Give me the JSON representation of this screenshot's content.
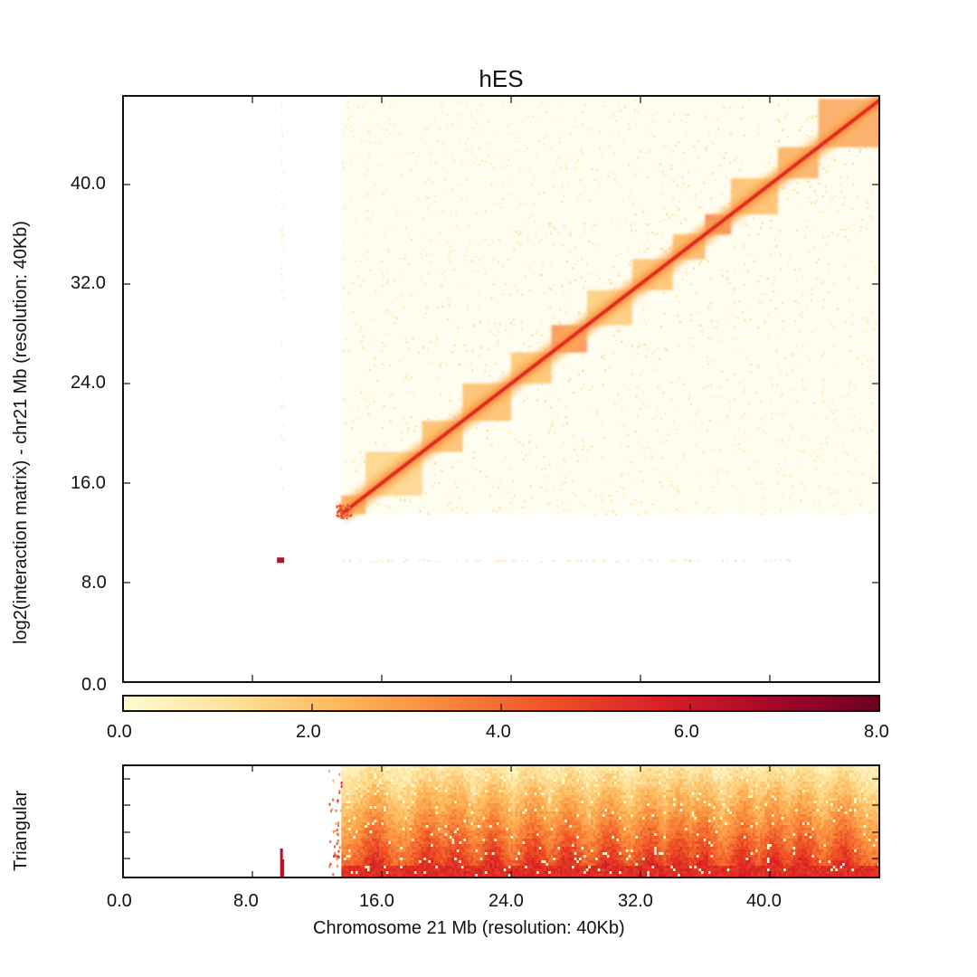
{
  "chart_data": {
    "type": "heatmap",
    "title": "hES",
    "panels": [
      {
        "name": "interaction-matrix",
        "type": "heatmap",
        "ylabel": "log2(interaction matrix) - chr21 Mb (resolution: 40Kb)",
        "x_range_mb": [
          0,
          46.9
        ],
        "y_range_mb": [
          0,
          46.9
        ],
        "y_ticks": [
          0.0,
          8.0,
          16.0,
          24.0,
          32.0,
          40.0
        ],
        "y_tick_labels": [
          "0.0",
          "8.0",
          "16.0",
          "24.0",
          "32.0",
          "40.0"
        ],
        "x_ticks": [
          8.0,
          16.0,
          24.0,
          32.0,
          40.0
        ],
        "diagonal_start_mb": 13.5,
        "diagonal_end_mb": 46.9,
        "tads_mb": [
          {
            "start": 13.5,
            "end": 15.0,
            "intensity": 0.35
          },
          {
            "start": 15.0,
            "end": 18.5,
            "intensity": 0.22
          },
          {
            "start": 18.5,
            "end": 21.0,
            "intensity": 0.3
          },
          {
            "start": 21.0,
            "end": 24.0,
            "intensity": 0.3
          },
          {
            "start": 24.0,
            "end": 26.5,
            "intensity": 0.28
          },
          {
            "start": 26.5,
            "end": 28.7,
            "intensity": 0.45
          },
          {
            "start": 28.7,
            "end": 31.5,
            "intensity": 0.25
          },
          {
            "start": 31.5,
            "end": 34.0,
            "intensity": 0.28
          },
          {
            "start": 34.0,
            "end": 36.0,
            "intensity": 0.32
          },
          {
            "start": 36.0,
            "end": 37.6,
            "intensity": 0.5
          },
          {
            "start": 37.6,
            "end": 40.5,
            "intensity": 0.3
          },
          {
            "start": 40.5,
            "end": 43.0,
            "intensity": 0.35
          },
          {
            "start": 43.0,
            "end": 46.9,
            "intensity": 0.38
          }
        ],
        "isolated_hotspot_mb": {
          "x": 9.8,
          "y": 9.8,
          "value": 6.5
        },
        "sparse_column_mb": 9.8
      },
      {
        "name": "colorbar",
        "type": "colorbar",
        "range": [
          0.0,
          8.0
        ],
        "ticks": [
          0.0,
          2.0,
          4.0,
          6.0,
          8.0
        ],
        "tick_labels": [
          "0.0",
          "2.0",
          "4.0",
          "6.0",
          "8.0"
        ],
        "colormap": [
          "#fffbd0",
          "#fde29a",
          "#fdb85a",
          "#f8873a",
          "#ee4f24",
          "#d81f26",
          "#a6082a",
          "#6b0020"
        ]
      },
      {
        "name": "triangular",
        "type": "heatmap",
        "ylabel": "Triangular",
        "xlabel": "Chromosome 21 Mb (resolution: 40Kb)",
        "x_ticks": [
          0.0,
          8.0,
          16.0,
          24.0,
          32.0,
          40.0
        ],
        "x_tick_labels": [
          "0.0",
          "8.0",
          "16.0",
          "24.0",
          "32.0",
          "40.0"
        ],
        "data_start_mb": 13.5,
        "hotspot_mb": 9.8,
        "triangle_peaks_mb": [
          15.5,
          18.8,
          20.5,
          22.8,
          25.3,
          27.5,
          30.0,
          32.5,
          34.3,
          35.8,
          38.3,
          40.2,
          42.0,
          44.5
        ]
      }
    ]
  },
  "labels": {
    "title": "hES",
    "main_ylabel": "log2(interaction matrix) - chr21 Mb (resolution: 40Kb)",
    "tri_ylabel": "Triangular",
    "xlabel": "Chromosome 21 Mb (resolution: 40Kb)",
    "main_yticks": [
      "0.0",
      "8.0",
      "16.0",
      "24.0",
      "32.0",
      "40.0"
    ],
    "cbar_ticks": [
      "0.0",
      "2.0",
      "4.0",
      "6.0",
      "8.0"
    ],
    "tri_xticks": [
      "0.0",
      "8.0",
      "16.0",
      "24.0",
      "32.0",
      "40.0"
    ]
  }
}
